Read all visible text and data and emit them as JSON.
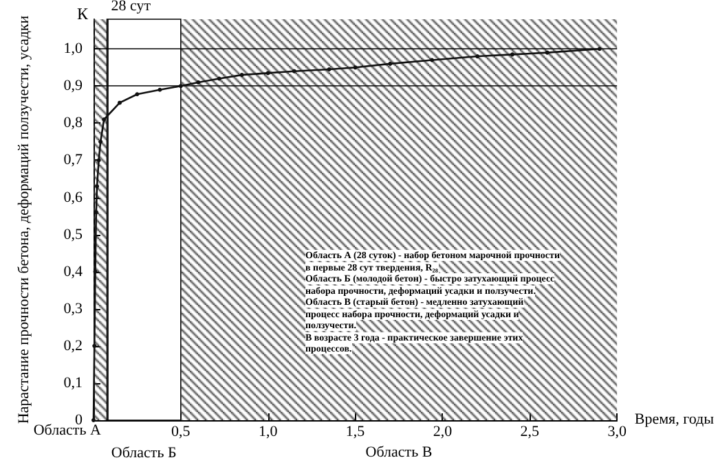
{
  "chart_data": {
    "type": "line",
    "ylabel": "Нарастание прочности бетона, деформаций ползучести, усадки",
    "xlabel": "Время, годы",
    "annotations": [
      "К",
      "Область А (28 суток) - набор бетоном марочной прочности в первые 28 сут твердения, R₂₈",
      "Область Б (молодой бетон) - быстро затухающий процесс набора прочности, деформаций усадки и ползучести.",
      "Область В (старый бетон) - медленно затухающий процесс набора прочности, деформаций усадки и ползучести.",
      "В возрасте 3 года - практическое завершение этих процессов."
    ],
    "series": [
      {
        "color": "#111111",
        "x": [
          0,
          0.005,
          0.01,
          0.015,
          0.02,
          0.03,
          0.04,
          0.06,
          0.15,
          0.25,
          0.38,
          0.5,
          0.6,
          0.72,
          0.85,
          1.0,
          1.15,
          1.35,
          1.5,
          1.7,
          1.94,
          2.2,
          2.4,
          2.6,
          2.9
        ],
        "values": [
          0,
          0.2,
          0.4,
          0.56,
          0.63,
          0.7,
          0.75,
          0.81,
          0.855,
          0.878,
          0.89,
          0.9,
          0.91,
          0.92,
          0.93,
          0.935,
          0.94,
          0.945,
          0.95,
          0.96,
          0.97,
          0.98,
          0.985,
          0.99,
          1.0
        ]
      }
    ],
    "xlim": [
      0,
      3
    ],
    "xticks": [
      {
        "value": 0,
        "label": null
      },
      {
        "value": 0.5,
        "label": "0,5"
      },
      {
        "value": 1,
        "label": "1,0"
      },
      {
        "value": 1.5,
        "label": "1,5"
      },
      {
        "value": 2,
        "label": "2,0"
      },
      {
        "value": 2.5,
        "label": "2,5"
      },
      {
        "value": 3,
        "label": "3,0"
      }
    ],
    "ylim": [
      0,
      1.08
    ],
    "yticks": [
      0,
      {
        "value": 0.1,
        "label": "0,1"
      },
      {
        "value": 0.2,
        "label": "0,2"
      },
      {
        "value": 0.3,
        "label": "0,3"
      },
      {
        "value": 0.4,
        "label": "0,4"
      },
      {
        "value": 0.5,
        "label": "0,5"
      },
      {
        "value": 0.6,
        "label": "0,6"
      },
      {
        "value": 0.7,
        "label": "0,7"
      },
      {
        "value": 0.8,
        "label": "0,8"
      },
      {
        "value": 0.9,
        "label": "0,9"
      },
      {
        "value": 1,
        "label": "1,0"
      }
    ],
    "bands": [
      {
        "axis": "x",
        "from": 0,
        "to": 0.077,
        "label": "Область А",
        "color": "#333333"
      },
      {
        "axis": "x",
        "from": 0.077,
        "to": 0.5,
        "label": "Область Б",
        "color": "#ffffff"
      },
      {
        "axis": "x",
        "from": 0.5,
        "to": 3,
        "label": "Область В",
        "color": "#333333"
      }
    ],
    "ref_lines": [
      {
        "axis": "y",
        "value": 0.9
      },
      {
        "axis": "y",
        "value": 1.0
      },
      {
        "axis": "x",
        "value": 0.077,
        "label": "28 сут"
      }
    ],
    "marker": "circle",
    "line_style": "solid",
    "grid": false
  }
}
